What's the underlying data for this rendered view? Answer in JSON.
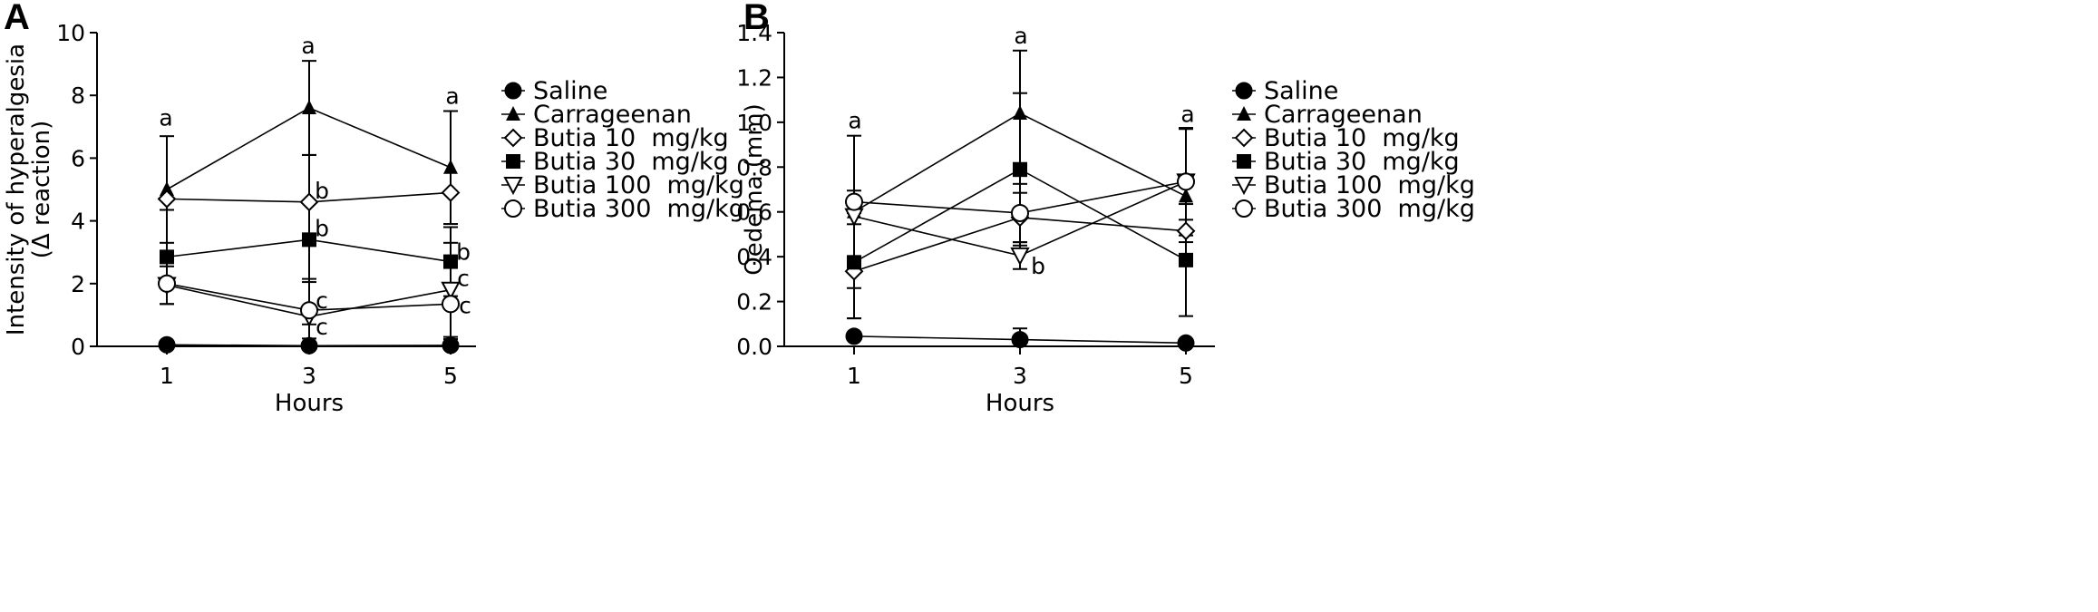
{
  "chart_data": [
    {
      "panel": "A",
      "type": "line",
      "x": [
        1,
        3,
        5
      ],
      "xlabel": "Hours",
      "ylabel": [
        "Intensity of hyperalgesia",
        "(Δ reaction)"
      ],
      "ylim": [
        0,
        10
      ],
      "yticks": [
        "0",
        "2",
        "4",
        "6",
        "8",
        "10"
      ],
      "xticks": [
        "1",
        "3",
        "5"
      ],
      "grid": false,
      "legend_placement": "right",
      "series": [
        {
          "name": "Saline",
          "marker": "circle-filled",
          "values": [
            0.05,
            0.02,
            0.03
          ],
          "errors": [
            0,
            0,
            0.2
          ]
        },
        {
          "name": "Carrageenan",
          "marker": "triangle-up-filled",
          "values": [
            5.0,
            7.6,
            5.7
          ],
          "errors": [
            1.7,
            1.5,
            1.8
          ]
        },
        {
          "name": "Butia 10  mg/kg",
          "marker": "diamond-open",
          "values": [
            4.7,
            4.6,
            4.9
          ],
          "errors": [
            0,
            0,
            0
          ]
        },
        {
          "name": "Butia 30  mg/kg",
          "marker": "square-filled",
          "values": [
            2.85,
            3.4,
            2.7
          ],
          "errors": [
            1.5,
            2.7,
            1.1
          ]
        },
        {
          "name": "Butia 100  mg/kg",
          "marker": "triangle-down-open",
          "values": [
            1.95,
            0.95,
            1.8
          ],
          "errors": [
            0.6,
            1.2,
            1.5
          ]
        },
        {
          "name": "Butia 300  mg/kg",
          "marker": "circle-open",
          "values": [
            2.0,
            1.15,
            1.35
          ],
          "errors": [
            0,
            0.9,
            0
          ]
        }
      ],
      "annotations": [
        {
          "text": "a",
          "x": 1,
          "y": 6.8
        },
        {
          "text": "a",
          "x": 3,
          "y": 9.1
        },
        {
          "text": "a",
          "x": 5,
          "y": 7.5
        },
        {
          "text": "b",
          "x": 3,
          "y": 4.6
        },
        {
          "text": "b",
          "x": 3,
          "y": 3.4
        },
        {
          "text": "b",
          "x": 5,
          "y": 2.7
        },
        {
          "text": "c",
          "x": 3,
          "y": 1.15
        },
        {
          "text": "c",
          "x": 3,
          "y": 0.95
        },
        {
          "text": "c",
          "x": 5,
          "y": 1.8
        },
        {
          "text": "c",
          "x": 5,
          "y": 1.35
        }
      ]
    },
    {
      "panel": "B",
      "type": "line",
      "x": [
        1,
        3,
        5
      ],
      "xlabel": "Hours",
      "ylabel": [
        "Oedema (mm)"
      ],
      "ylim": [
        0,
        1.4
      ],
      "yticks": [
        "0.0",
        "0.2",
        "0.4",
        "0.6",
        "0.8",
        "1.0",
        "1.2",
        "1.4"
      ],
      "xticks": [
        "1",
        "3",
        "5"
      ],
      "grid": false,
      "legend_placement": "right",
      "series": [
        {
          "name": "Saline",
          "marker": "circle-filled",
          "values": [
            0.045,
            0.03,
            0.015
          ],
          "errors": [
            0,
            0.05,
            0
          ]
        },
        {
          "name": "Carrageenan",
          "marker": "triangle-up-filled",
          "values": [
            0.6,
            1.04,
            0.67
          ],
          "errors": [
            0.34,
            0.28,
            0.3
          ]
        },
        {
          "name": "Butia 10  mg/kg",
          "marker": "diamond-open",
          "values": [
            0.335,
            0.575,
            0.515
          ],
          "errors": [
            0.21,
            0.11,
            0.05
          ]
        },
        {
          "name": "Butia 30  mg/kg",
          "marker": "square-filled",
          "values": [
            0.375,
            0.79,
            0.385
          ],
          "errors": [
            0.25,
            0.34,
            0.25
          ]
        },
        {
          "name": "Butia 100  mg/kg",
          "marker": "triangle-down-open",
          "values": [
            0.58,
            0.405,
            0.735
          ],
          "errors": [
            0,
            0.06,
            0.24
          ]
        },
        {
          "name": "Butia 300  mg/kg",
          "marker": "circle-open",
          "values": [
            0.645,
            0.595,
            0.735
          ],
          "errors": [
            0.05,
            0.13,
            0
          ]
        }
      ],
      "annotations": [
        {
          "text": "a",
          "x": 1,
          "y": 0.94
        },
        {
          "text": "a",
          "x": 3,
          "y": 1.32
        },
        {
          "text": "a",
          "x": 5,
          "y": 0.97
        },
        {
          "text": "b",
          "x": 3,
          "y": 0.405
        }
      ]
    }
  ]
}
